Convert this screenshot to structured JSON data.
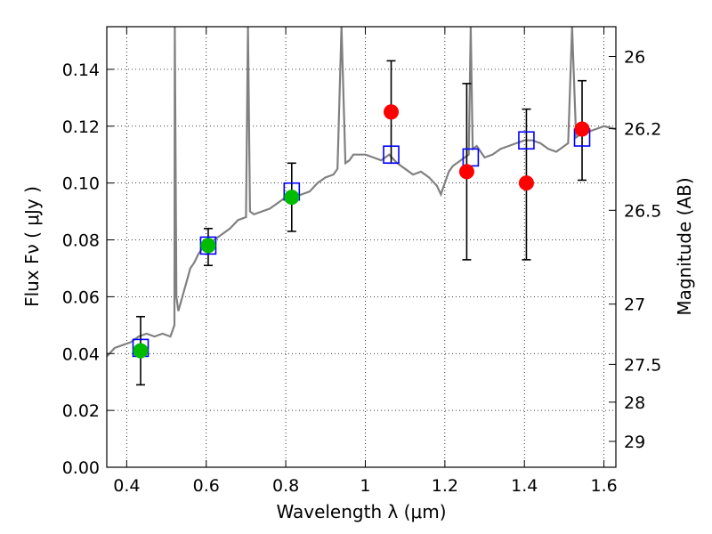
{
  "chart_data": {
    "type": "scatter",
    "xlabel": "Wavelength  λ (μm)",
    "ylabel": "Flux  Fν  ( μJy )",
    "ylabel_right": "Magnitude (AB)",
    "xlim": [
      0.35,
      1.63
    ],
    "ylim": [
      0,
      0.155
    ],
    "grid": true,
    "x_ticks": [
      0.4,
      0.6,
      0.8,
      1.0,
      1.2,
      1.4,
      1.6
    ],
    "x_tick_labels": [
      "0.4",
      "0.6",
      "0.8",
      "1",
      "1.2",
      "1.4",
      "1.6"
    ],
    "y_ticks": [
      0,
      0.02,
      0.04,
      0.06,
      0.08,
      0.1,
      0.12,
      0.14
    ],
    "y_tick_labels": [
      "0.00",
      "0.02",
      "0.04",
      "0.06",
      "0.08",
      "0.10",
      "0.12",
      "0.14"
    ],
    "right_ticks": [
      {
        "label": "26",
        "flux": 0.1445
      },
      {
        "label": "26.2",
        "flux": 0.1191
      },
      {
        "label": "26.5",
        "flux": 0.0904
      },
      {
        "label": "27",
        "flux": 0.0574
      },
      {
        "label": "27.5",
        "flux": 0.0362
      },
      {
        "label": "28",
        "flux": 0.0229
      },
      {
        "label": "29",
        "flux": 0.0091
      }
    ],
    "model_spectrum": {
      "color": "#808080",
      "x": [
        0.35,
        0.37,
        0.39,
        0.41,
        0.43,
        0.45,
        0.47,
        0.49,
        0.51,
        0.52,
        0.521,
        0.525,
        0.53,
        0.54,
        0.55,
        0.56,
        0.57,
        0.58,
        0.59,
        0.6,
        0.62,
        0.64,
        0.66,
        0.68,
        0.7,
        0.705,
        0.71,
        0.72,
        0.74,
        0.76,
        0.78,
        0.8,
        0.82,
        0.84,
        0.86,
        0.88,
        0.9,
        0.92,
        0.93,
        0.94,
        0.95,
        0.96,
        0.97,
        0.98,
        1.0,
        1.02,
        1.04,
        1.06,
        1.08,
        1.1,
        1.12,
        1.14,
        1.16,
        1.18,
        1.19,
        1.2,
        1.21,
        1.22,
        1.24,
        1.26,
        1.265,
        1.27,
        1.28,
        1.3,
        1.32,
        1.34,
        1.36,
        1.38,
        1.4,
        1.42,
        1.44,
        1.46,
        1.48,
        1.5,
        1.51,
        1.52,
        1.53,
        1.54,
        1.56,
        1.58,
        1.6,
        1.63
      ],
      "y": [
        0.039,
        0.042,
        0.043,
        0.044,
        0.046,
        0.047,
        0.046,
        0.047,
        0.046,
        0.05,
        0.155,
        0.06,
        0.055,
        0.06,
        0.065,
        0.07,
        0.072,
        0.075,
        0.077,
        0.078,
        0.08,
        0.082,
        0.084,
        0.087,
        0.088,
        0.155,
        0.09,
        0.089,
        0.09,
        0.091,
        0.093,
        0.095,
        0.095,
        0.096,
        0.097,
        0.1,
        0.102,
        0.103,
        0.105,
        0.155,
        0.107,
        0.108,
        0.11,
        0.11,
        0.11,
        0.109,
        0.108,
        0.11,
        0.107,
        0.105,
        0.103,
        0.104,
        0.102,
        0.099,
        0.096,
        0.1,
        0.104,
        0.106,
        0.108,
        0.11,
        0.155,
        0.112,
        0.113,
        0.109,
        0.11,
        0.112,
        0.113,
        0.114,
        0.115,
        0.115,
        0.114,
        0.112,
        0.111,
        0.113,
        0.114,
        0.155,
        0.116,
        0.117,
        0.118,
        0.119,
        0.12,
        0.119
      ]
    },
    "series": [
      {
        "marker": "square",
        "color": "#0000ff",
        "x": [
          0.435,
          0.605,
          0.815,
          1.065,
          1.265,
          1.405,
          1.545
        ],
        "y": [
          0.042,
          0.078,
          0.097,
          0.11,
          0.109,
          0.115,
          0.116
        ]
      },
      {
        "marker": "circle",
        "color": "#00bb00",
        "x": [
          0.435,
          0.605,
          0.815
        ],
        "y": [
          0.041,
          0.078,
          0.095
        ]
      },
      {
        "marker": "circle",
        "color": "#ff0000",
        "x": [
          1.065,
          1.255,
          1.405,
          1.545
        ],
        "y": [
          0.125,
          0.104,
          0.1,
          0.119
        ]
      }
    ],
    "error_bars": [
      {
        "x": 0.435,
        "low": 0.029,
        "high": 0.053
      },
      {
        "x": 0.605,
        "low": 0.071,
        "high": 0.084
      },
      {
        "x": 0.815,
        "low": 0.083,
        "high": 0.107
      },
      {
        "x": 1.065,
        "low": 0.107,
        "high": 0.143
      },
      {
        "x": 1.255,
        "low": 0.073,
        "high": 0.135
      },
      {
        "x": 1.405,
        "low": 0.073,
        "high": 0.126
      },
      {
        "x": 1.545,
        "low": 0.101,
        "high": 0.136
      }
    ]
  }
}
